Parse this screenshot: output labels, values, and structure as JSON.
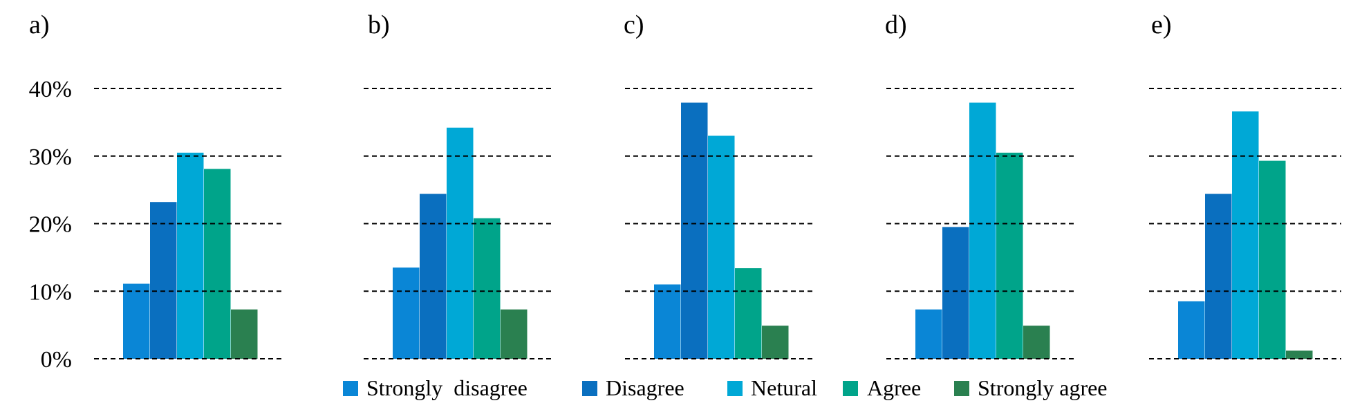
{
  "chart_data": {
    "type": "bar",
    "ylim": [
      0,
      40
    ],
    "yticks": [
      {
        "value": 0,
        "label": "0%"
      },
      {
        "value": 10,
        "label": "10%"
      },
      {
        "value": 20,
        "label": "20%"
      },
      {
        "value": 30,
        "label": "30%"
      },
      {
        "value": 40,
        "label": "40%"
      }
    ],
    "grid": "dashed",
    "legend": "bottom",
    "series": [
      {
        "name": "Strongly  disagree",
        "color": "#0a86d6"
      },
      {
        "name": "Disagree",
        "color": "#0a6fbf"
      },
      {
        "name": "Netural",
        "color": "#00a8d6"
      },
      {
        "name": "Agree",
        "color": "#00a48a"
      },
      {
        "name": "Strongly agree",
        "color": "#2a8050"
      }
    ],
    "panels": [
      {
        "label": "a)",
        "values": [
          11.1,
          23.2,
          30.5,
          28.1,
          7.3
        ]
      },
      {
        "label": "b)",
        "values": [
          13.5,
          24.4,
          34.2,
          20.8,
          7.3
        ]
      },
      {
        "label": "c)",
        "values": [
          11.0,
          37.9,
          33.0,
          13.4,
          4.9
        ]
      },
      {
        "label": "d)",
        "values": [
          7.3,
          19.5,
          37.9,
          30.5,
          4.9
        ]
      },
      {
        "label": "e)",
        "values": [
          8.5,
          24.4,
          36.6,
          29.3,
          1.2
        ]
      }
    ]
  }
}
